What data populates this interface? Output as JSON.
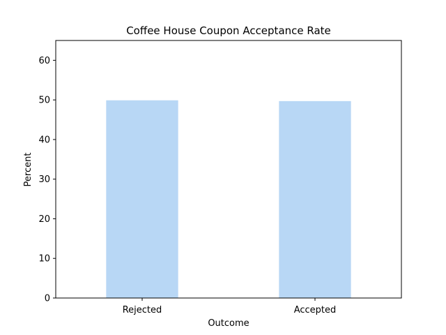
{
  "chart_data": {
    "type": "bar",
    "title": "Coffee House Coupon Acceptance Rate",
    "xlabel": "Outcome",
    "ylabel": "Percent",
    "categories": [
      "Rejected",
      "Accepted"
    ],
    "values": [
      49.9,
      49.7
    ],
    "ylim": [
      0,
      65
    ],
    "yticks": [
      0,
      10,
      20,
      30,
      40,
      50,
      60
    ],
    "ytick_labels": [
      "0",
      "10",
      "20",
      "30",
      "40",
      "50",
      "60"
    ],
    "bar_color": "#b8d7f5",
    "grid": false,
    "legend": "none"
  }
}
